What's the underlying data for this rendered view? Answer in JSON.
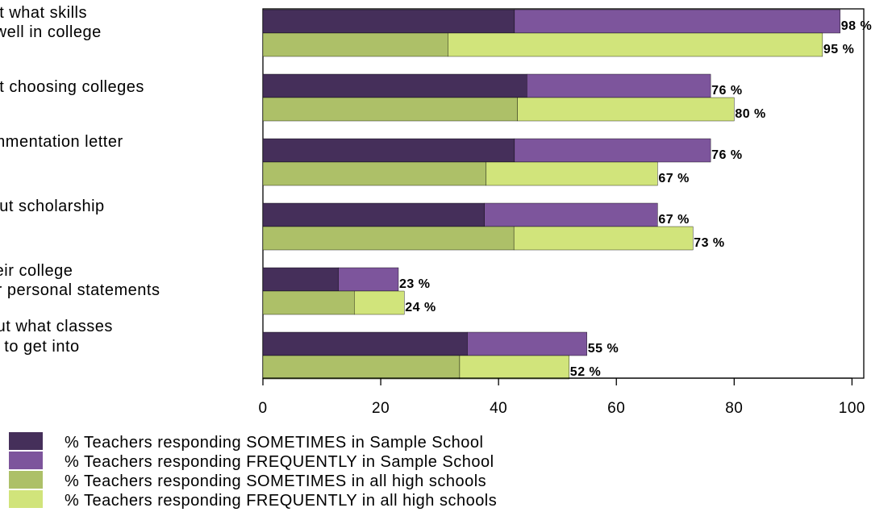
{
  "chart_data": {
    "type": "bar",
    "orientation": "horizontal",
    "stacked_pairs": true,
    "categories": [
      [
        "out what skills",
        "o well in college"
      ],
      [
        "out choosing colleges"
      ],
      [
        "ommentation letter"
      ],
      [
        "bout scholarship"
      ],
      [
        "their college",
        "or personal statements"
      ],
      [
        "out what classes",
        "ng to get into"
      ]
    ],
    "series": [
      {
        "name": "% Teachers responding SOMETIMES in Sample School",
        "color": "#452f5a",
        "values": [
          42.7,
          44.8,
          42.7,
          37.6,
          12.8,
          34.7
        ]
      },
      {
        "name": "% Teachers responding FREQUENTLY in Sample School",
        "color": "#7d559c",
        "values": [
          55.3,
          31.2,
          33.3,
          29.4,
          10.2,
          20.3
        ]
      },
      {
        "name": "% Teachers responding SOMETIMES in all high schools",
        "color": "#adc068",
        "values": [
          31.4,
          43.2,
          37.9,
          42.6,
          15.5,
          33.4
        ]
      },
      {
        "name": "% Teachers responding FREQUENTLY in all high schools",
        "color": "#d1e47b",
        "values": [
          63.6,
          36.8,
          29.1,
          30.4,
          8.5,
          18.6
        ]
      }
    ],
    "totals_labels": [
      [
        "98 %",
        "95 %"
      ],
      [
        "76 %",
        "80 %"
      ],
      [
        "76 %",
        "67 %"
      ],
      [
        "67 %",
        "73 %"
      ],
      [
        "23 %",
        "24 %"
      ],
      [
        "55 %",
        "52 %"
      ]
    ],
    "xticks": [
      "0",
      "20",
      "40",
      "60",
      "80",
      "100"
    ],
    "xlim": [
      0,
      102
    ],
    "title": "",
    "xlabel": "",
    "ylabel": "",
    "grid": false,
    "legend_position": "bottom"
  }
}
